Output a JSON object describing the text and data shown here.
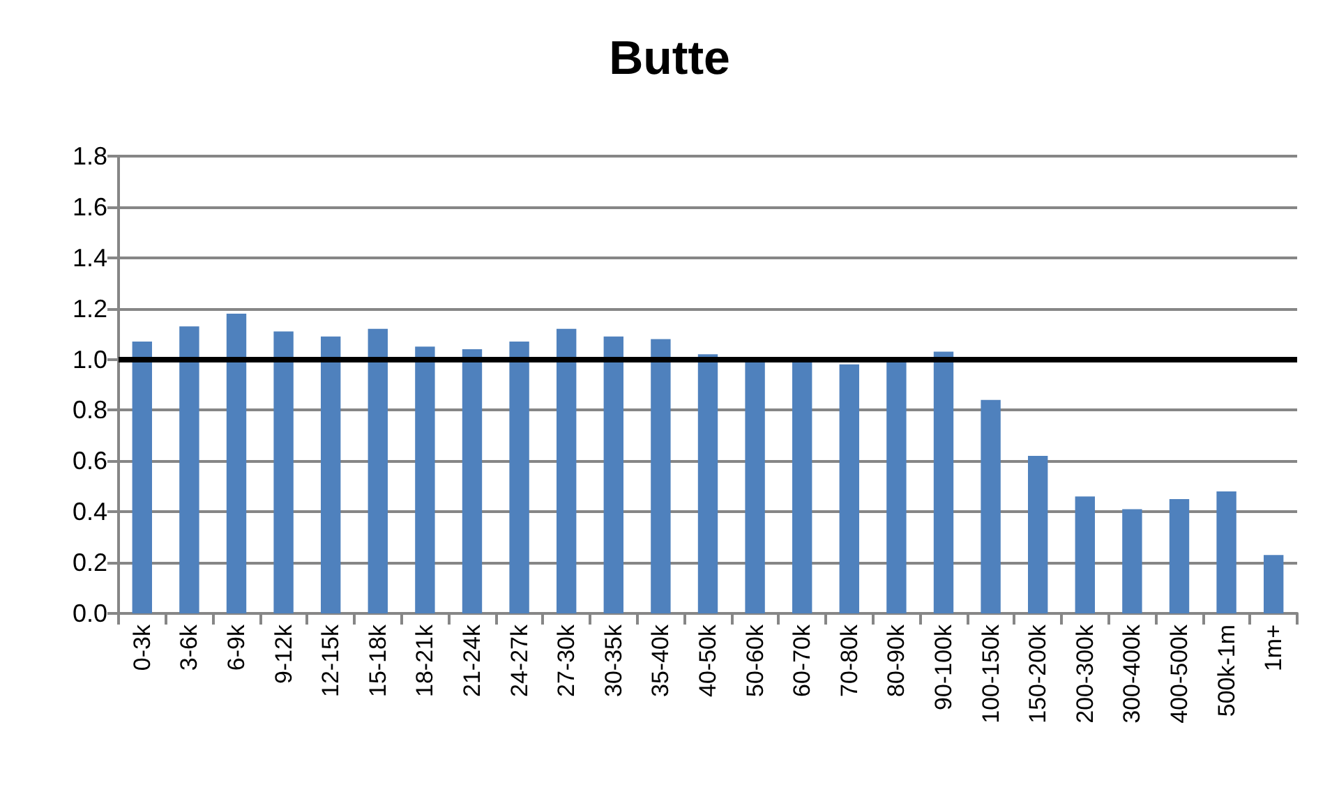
{
  "chart_data": {
    "type": "bar",
    "title": "Butte",
    "categories": [
      "0-3k",
      "3-6k",
      "6-9k",
      "9-12k",
      "12-15k",
      "15-18k",
      "18-21k",
      "21-24k",
      "24-27k",
      "27-30k",
      "30-35k",
      "35-40k",
      "40-50k",
      "50-60k",
      "60-70k",
      "70-80k",
      "80-90k",
      "90-100k",
      "100-150k",
      "150-200k",
      "200-300k",
      "300-400k",
      "400-500k",
      "500k-1m",
      "1m+"
    ],
    "values": [
      1.07,
      1.13,
      1.18,
      1.11,
      1.09,
      1.12,
      1.05,
      1.04,
      1.07,
      1.12,
      1.09,
      1.08,
      1.02,
      1.0,
      1.0,
      0.98,
      1.0,
      1.03,
      0.84,
      0.62,
      0.46,
      0.41,
      0.45,
      0.48,
      0.23
    ],
    "color": "#4f81bd",
    "ylim": [
      0,
      1.8
    ],
    "yticks": [
      {
        "value": 0,
        "label": "0.0"
      },
      0.2,
      0.4,
      0.6,
      0.8,
      {
        "value": 1,
        "label": "1.0"
      },
      1.2,
      1.4,
      1.6,
      1.8
    ],
    "grid": "y",
    "ref_lines": [
      {
        "axis": "y",
        "value": 1.0,
        "color": "#000000",
        "line_style": "solid"
      }
    ]
  }
}
